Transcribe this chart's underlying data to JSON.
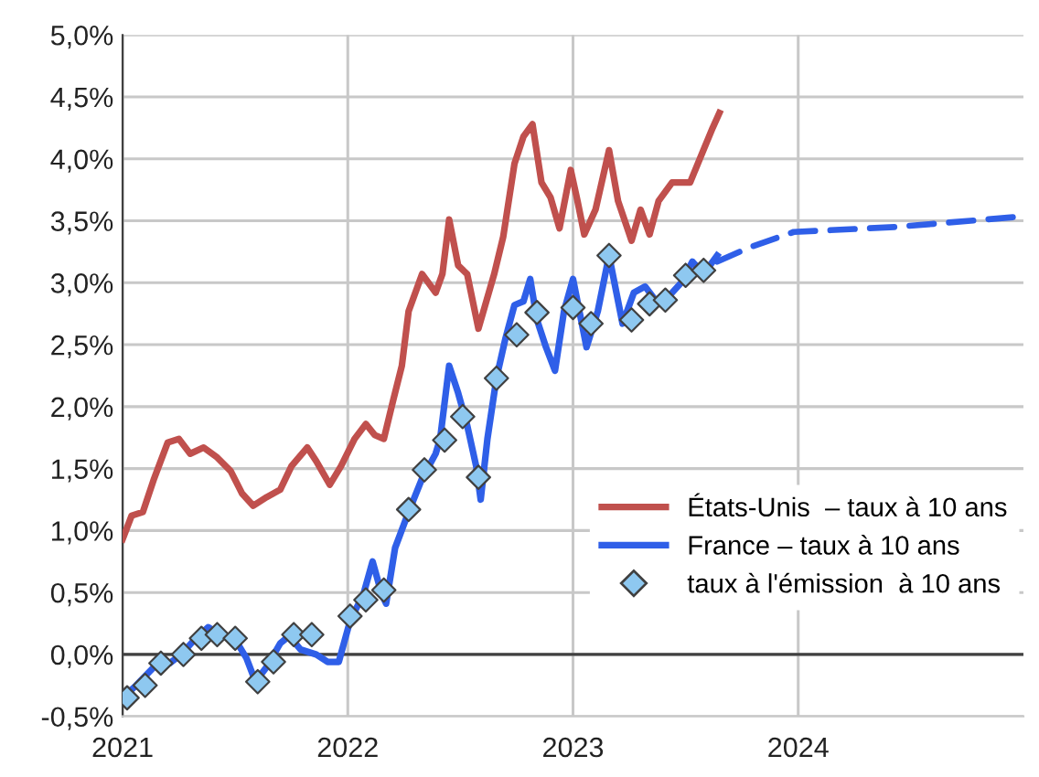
{
  "chart_data": {
    "type": "line",
    "xlim": [
      2021,
      2025
    ],
    "xticks": [
      2021,
      2022,
      2023,
      2024
    ],
    "ylim": [
      -0.5,
      5.0
    ],
    "yticks": [
      {
        "value": -0.5,
        "label": "-0,5%"
      },
      {
        "value": 0,
        "label": "0,0%"
      },
      {
        "value": 0.5,
        "label": "0,5%"
      },
      {
        "value": 1.0,
        "label": "1,0%"
      },
      {
        "value": 1.5,
        "label": "1,5%"
      },
      {
        "value": 2.0,
        "label": "2,0%"
      },
      {
        "value": 2.5,
        "label": "2,5%"
      },
      {
        "value": 3.0,
        "label": "3,0%"
      },
      {
        "value": 3.5,
        "label": "3,5%"
      },
      {
        "value": 4.0,
        "label": "4,0%"
      },
      {
        "value": 4.5,
        "label": "4,5%"
      },
      {
        "value": 5.0,
        "label": "5,0%"
      }
    ],
    "grid": true,
    "legend": "bottom right",
    "ref_lines": [
      {
        "axis": "y",
        "value": 0,
        "color": "#404040"
      }
    ],
    "series": [
      {
        "name": "États-Unis  – taux à 10 ans",
        "color": "#c0504d",
        "line_style": "solid",
        "x": [
          2021.0,
          2021.04,
          2021.09,
          2021.14,
          2021.2,
          2021.25,
          2021.3,
          2021.36,
          2021.42,
          2021.48,
          2021.53,
          2021.58,
          2021.64,
          2021.7,
          2021.75,
          2021.82,
          2021.86,
          2021.92,
          2021.97,
          2022.03,
          2022.08,
          2022.12,
          2022.16,
          2022.2,
          2022.24,
          2022.27,
          2022.33,
          2022.39,
          2022.42,
          2022.45,
          2022.49,
          2022.53,
          2022.58,
          2022.65,
          2022.69,
          2022.74,
          2022.78,
          2022.82,
          2022.86,
          2022.9,
          2022.94,
          2022.99,
          2023.02,
          2023.05,
          2023.1,
          2023.16,
          2023.2,
          2023.26,
          2023.3,
          2023.34,
          2023.38,
          2023.44,
          2023.52,
          2023.57,
          2023.62,
          2023.65
        ],
        "values": [
          0.93,
          1.12,
          1.15,
          1.42,
          1.71,
          1.74,
          1.62,
          1.67,
          1.59,
          1.48,
          1.3,
          1.2,
          1.27,
          1.33,
          1.52,
          1.67,
          1.56,
          1.37,
          1.52,
          1.74,
          1.86,
          1.77,
          1.74,
          2.04,
          2.33,
          2.77,
          3.07,
          2.92,
          3.07,
          3.51,
          3.14,
          3.07,
          2.63,
          3.07,
          3.37,
          3.96,
          4.18,
          4.28,
          3.81,
          3.69,
          3.44,
          3.91,
          3.66,
          3.39,
          3.59,
          4.07,
          3.66,
          3.34,
          3.59,
          3.39,
          3.66,
          3.81,
          3.81,
          4.03,
          4.25,
          4.37
        ]
      },
      {
        "name": "France – taux à 10 ans",
        "color": "#2f5fe8",
        "line_style": "solid",
        "x": [
          2021.0,
          2021.06,
          2021.14,
          2021.21,
          2021.26,
          2021.32,
          2021.38,
          2021.44,
          2021.5,
          2021.55,
          2021.59,
          2021.64,
          2021.7,
          2021.74,
          2021.79,
          2021.86,
          2021.91,
          2021.96,
          2022.01,
          2022.07,
          2022.11,
          2022.15,
          2022.17,
          2022.21,
          2022.27,
          2022.33,
          2022.39,
          2022.41,
          2022.45,
          2022.49,
          2022.53,
          2022.57,
          2022.59,
          2022.62,
          2022.66,
          2022.7,
          2022.74,
          2022.78,
          2022.81,
          2022.84,
          2022.88,
          2022.92,
          2022.96,
          2023.0,
          2023.06,
          2023.11,
          2023.16,
          2023.22,
          2023.27,
          2023.32,
          2023.37,
          2023.42,
          2023.48,
          2023.53,
          2023.58,
          2023.64
        ],
        "values": [
          -0.35,
          -0.25,
          -0.1,
          -0.07,
          0.0,
          0.12,
          0.22,
          0.15,
          0.12,
          -0.03,
          -0.22,
          -0.1,
          0.09,
          0.15,
          0.04,
          0.0,
          -0.06,
          -0.06,
          0.27,
          0.49,
          0.75,
          0.49,
          0.41,
          0.86,
          1.15,
          1.42,
          1.62,
          1.74,
          2.33,
          2.11,
          1.85,
          1.52,
          1.25,
          1.74,
          2.23,
          2.55,
          2.82,
          2.85,
          3.03,
          2.7,
          2.48,
          2.29,
          2.77,
          3.03,
          2.48,
          2.77,
          3.22,
          2.67,
          2.92,
          2.97,
          2.85,
          2.88,
          3.0,
          3.17,
          3.07,
          3.22
        ]
      },
      {
        "color": "#2f5fe8",
        "line_style": "dashed",
        "x": [
          2023.64,
          2023.79,
          2023.98,
          2024.43,
          2024.96
        ],
        "values": [
          3.17,
          3.29,
          3.41,
          3.45,
          3.53
        ]
      },
      {
        "name": "taux à l'émission  à 10 ans",
        "type": "scatter",
        "color": "#8ec8f0",
        "marker": "diamond",
        "x": [
          2021.02,
          2021.1,
          2021.17,
          2021.27,
          2021.35,
          2021.42,
          2021.5,
          2021.6,
          2021.67,
          2021.76,
          2021.84,
          2022.01,
          2022.08,
          2022.16,
          2022.27,
          2022.34,
          2022.43,
          2022.51,
          2022.58,
          2022.66,
          2022.75,
          2022.84,
          2023.0,
          2023.08,
          2023.16,
          2023.26,
          2023.34,
          2023.41,
          2023.5,
          2023.58
        ],
        "values": [
          -0.35,
          -0.25,
          -0.07,
          0.0,
          0.13,
          0.16,
          0.13,
          -0.22,
          -0.06,
          0.16,
          0.16,
          0.31,
          0.44,
          0.52,
          1.17,
          1.49,
          1.73,
          1.92,
          1.43,
          2.23,
          2.58,
          2.76,
          2.8,
          2.67,
          3.22,
          2.7,
          2.83,
          2.86,
          3.06,
          3.1
        ]
      }
    ]
  }
}
